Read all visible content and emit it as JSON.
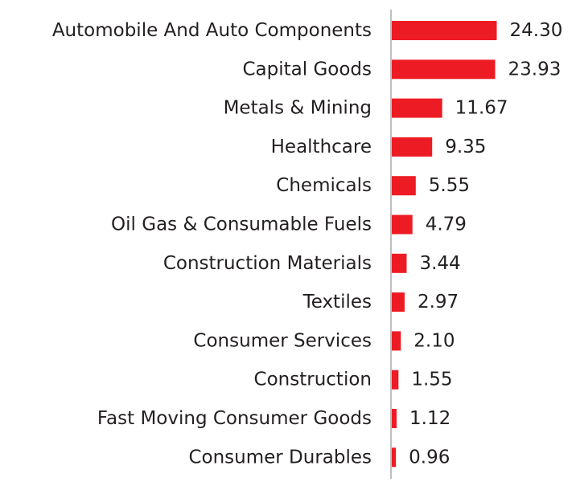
{
  "chart_data": {
    "type": "bar",
    "orientation": "horizontal",
    "title": "",
    "xlabel": "",
    "ylabel": "",
    "bar_color": "#ed1c24",
    "axis_color": "#bfbfbf",
    "text_color": "#231f20",
    "grid": false,
    "legend": "none",
    "xlim": [
      0,
      26
    ],
    "categories": [
      "Automobile And Auto Components",
      "Capital Goods",
      "Metals & Mining",
      "Healthcare",
      "Chemicals",
      "Oil Gas & Consumable Fuels",
      "Construction Materials",
      "Textiles",
      "Consumer Services",
      "Construction",
      "Fast Moving Consumer Goods",
      "Consumer Durables"
    ],
    "values": [
      24.3,
      23.93,
      11.67,
      9.35,
      5.55,
      4.79,
      3.44,
      2.97,
      2.1,
      1.55,
      1.12,
      0.96
    ],
    "value_labels": [
      "24.30",
      "23.93",
      "11.67",
      "9.35",
      "5.55",
      "4.79",
      "3.44",
      "2.97",
      "2.10",
      "1.55",
      "1.12",
      "0.96"
    ]
  }
}
